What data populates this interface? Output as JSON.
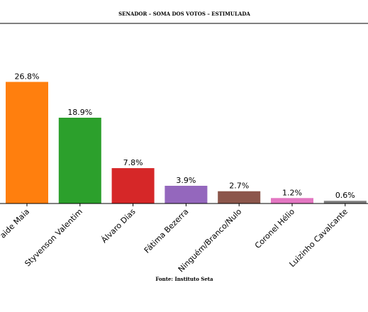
{
  "chart_data": {
    "type": "bar",
    "title": "SENADOR – SOMA DOS VOTOS – ESTIMULADA",
    "source": "Fonte: Instituto Seta",
    "categories": [
      "Adelaide Maia",
      "Styvenson Valentim",
      "Álvaro Dias",
      "Fátima Bezerra",
      "Ninguém/Branco/Nulo",
      "Coronel Hélio",
      "Luizinho Cavalcante"
    ],
    "visible_tick_labels": [
      "aide Maia",
      "Styvenson Valentim",
      "Álvaro Dias",
      "Fátima Bezerra",
      "Ninguém/Branco/Nulo",
      "Coronel Hélio",
      "Luizinho Cavalcante"
    ],
    "values": [
      26.8,
      18.9,
      7.8,
      3.9,
      2.7,
      1.2,
      0.6
    ],
    "value_labels": [
      "26.8%",
      "18.9%",
      "7.8%",
      "3.9%",
      "2.7%",
      "1.2%",
      "0.6%"
    ],
    "colors": [
      "#ff7f0e",
      "#2ca02c",
      "#d62728",
      "#9467bd",
      "#8c564b",
      "#e377c2",
      "#7f7f7f"
    ],
    "ylim": [
      0,
      30
    ],
    "grid": false,
    "legend": "none"
  }
}
